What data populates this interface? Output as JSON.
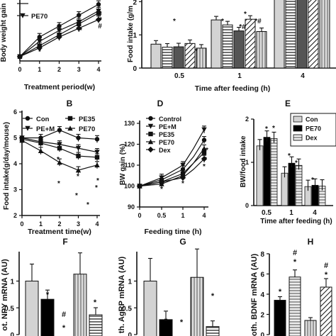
{
  "chart_data": [
    {
      "id": "A",
      "type": "line",
      "ylabel": "Body weight gain",
      "xlabel": "Treatment period(w)",
      "x": [
        0,
        1,
        2,
        3,
        4
      ],
      "xlim": [
        0,
        4
      ],
      "ylim": [
        0.8,
        3.6
      ],
      "legend": [
        "PE70"
      ],
      "series": [
        {
          "name": "PE70",
          "marker": "triangle-down",
          "values": [
            1.0,
            1.7,
            2.2,
            2.6,
            3.1
          ]
        },
        {
          "marker": "circle",
          "values": [
            1.0,
            1.9,
            2.4,
            2.9,
            3.4
          ]
        },
        {
          "marker": "square",
          "values": [
            1.0,
            1.5,
            2.0,
            2.5,
            3.0
          ]
        },
        {
          "marker": "diamond",
          "values": [
            1.0,
            1.4,
            1.9,
            2.3,
            2.7
          ]
        }
      ],
      "annotations": [
        "*",
        "*",
        "*",
        "*",
        "*",
        "#",
        "*",
        "#"
      ]
    },
    {
      "id": "C",
      "type": "bar",
      "ylabel": "Food intake (g/m",
      "xlabel": "Time after feeding (h)",
      "categories": [
        "0.5",
        "1",
        "4"
      ],
      "ylim": [
        0,
        2.05
      ],
      "yticks": [
        0,
        1,
        2
      ],
      "group_values": [
        [
          0.72,
          0.63,
          0.64,
          0.74,
          0.6
        ],
        [
          1.45,
          1.3,
          1.12,
          1.47,
          1.1
        ],
        [
          2.6,
          2.6,
          2.6,
          2.6,
          2.6
        ]
      ],
      "annotations": [
        "*",
        "*",
        "*",
        "*#",
        "*",
        "*#"
      ]
    },
    {
      "id": "B",
      "panel_label": "B",
      "type": "line",
      "ylabel": "Food intake(g/day/mouse)",
      "xlabel": "Treatment time(w)",
      "x": [
        0,
        1,
        2,
        3,
        4
      ],
      "xlim": [
        0,
        4
      ],
      "ylim": [
        2,
        6
      ],
      "yticks": [
        2,
        3,
        4,
        5,
        6
      ],
      "series": [
        {
          "name": "Con",
          "marker": "circle",
          "values": [
            5.0,
            5.0,
            5.3,
            5.0,
            4.95
          ]
        },
        {
          "name": "PE+M",
          "marker": "triangle-down",
          "values": [
            5.0,
            4.85,
            4.75,
            4.6,
            4.45
          ]
        },
        {
          "name": "PE35",
          "marker": "square",
          "values": [
            4.95,
            4.8,
            4.6,
            4.3,
            4.25
          ]
        },
        {
          "name": "PE70",
          "marker": "triangle-up",
          "values": [
            4.9,
            4.5,
            4.05,
            3.75,
            3.95
          ]
        }
      ],
      "annotations": [
        "*",
        "*",
        "*",
        "*",
        "*",
        "*",
        "*",
        "*"
      ]
    },
    {
      "id": "D",
      "panel_label": "D",
      "type": "line",
      "ylabel": "BW gain (%)",
      "xlabel": "Feeding time (h)",
      "x": [
        0,
        0.5,
        1,
        2,
        4
      ],
      "xlim": [
        0,
        4
      ],
      "xticks": [
        0,
        0.5,
        1,
        2,
        4
      ],
      "ylim": [
        90,
        130
      ],
      "yticks": [
        90,
        100,
        110,
        120,
        130
      ],
      "series": [
        {
          "name": "Control",
          "marker": "circle",
          "values": [
            100,
            103,
            108,
            114,
            122
          ]
        },
        {
          "name": "PE+M",
          "marker": "triangle-down",
          "values": [
            100,
            104,
            110,
            118,
            127
          ]
        },
        {
          "name": "PE35",
          "marker": "square",
          "values": [
            100,
            102,
            106,
            111,
            116
          ]
        },
        {
          "name": "PE70",
          "marker": "triangle-up",
          "values": [
            100,
            101,
            105,
            111,
            118
          ]
        },
        {
          "name": "Dex",
          "marker": "diamond",
          "values": [
            100,
            102,
            104,
            108,
            113
          ]
        }
      ],
      "annotations": [
        "*",
        "*",
        "*",
        "*",
        "*",
        "*",
        "*"
      ]
    },
    {
      "id": "E",
      "panel_label": "E",
      "type": "bar",
      "ylabel": "BW/food intake",
      "xlabel": "Time after feeding (h)",
      "categories": [
        "0.5",
        "1",
        "4"
      ],
      "ylim": [
        0,
        2
      ],
      "yticks": [
        0,
        1,
        2
      ],
      "series": [
        {
          "name": "Con",
          "values": [
            1.38,
            0.75,
            0.44
          ]
        },
        {
          "name": "PE70",
          "values": [
            1.58,
            0.98,
            0.47
          ]
        },
        {
          "name": "Dex",
          "values": [
            1.55,
            0.93,
            0.45
          ]
        }
      ],
      "annotations": [
        "*",
        "*",
        "*",
        "*",
        "*"
      ]
    },
    {
      "id": "F",
      "panel_label": "F",
      "type": "bar",
      "ylabel": "ot. NPY mRNA (AU)",
      "ylim": [
        0,
        1.55
      ],
      "yticks": [
        0,
        0.5,
        1
      ],
      "values": [
        1.0,
        0.66,
        0,
        1.13,
        0.37
      ],
      "annotations": [
        "*",
        "#",
        "*",
        "*"
      ]
    },
    {
      "id": "G",
      "panel_label": "G",
      "type": "bar",
      "ylabel": "th. AgRP mRNA (AU)",
      "ylim": [
        0,
        1.55
      ],
      "yticks": [
        0,
        0.5,
        1
      ],
      "values": [
        1.0,
        0.28,
        0,
        1.07,
        0.15
      ],
      "annotations": [
        "*",
        "*",
        "*"
      ]
    },
    {
      "id": "H",
      "panel_label": "H",
      "type": "bar",
      "ylabel": "oth. BDNF mRNA (AU)",
      "ylim": [
        0,
        8
      ],
      "yticks": [
        0,
        2,
        4,
        6,
        8
      ],
      "values": [
        0,
        3.4,
        5.7,
        1.4,
        4.7
      ],
      "annotations": [
        "*",
        "#",
        "*",
        "#",
        "*"
      ]
    }
  ]
}
